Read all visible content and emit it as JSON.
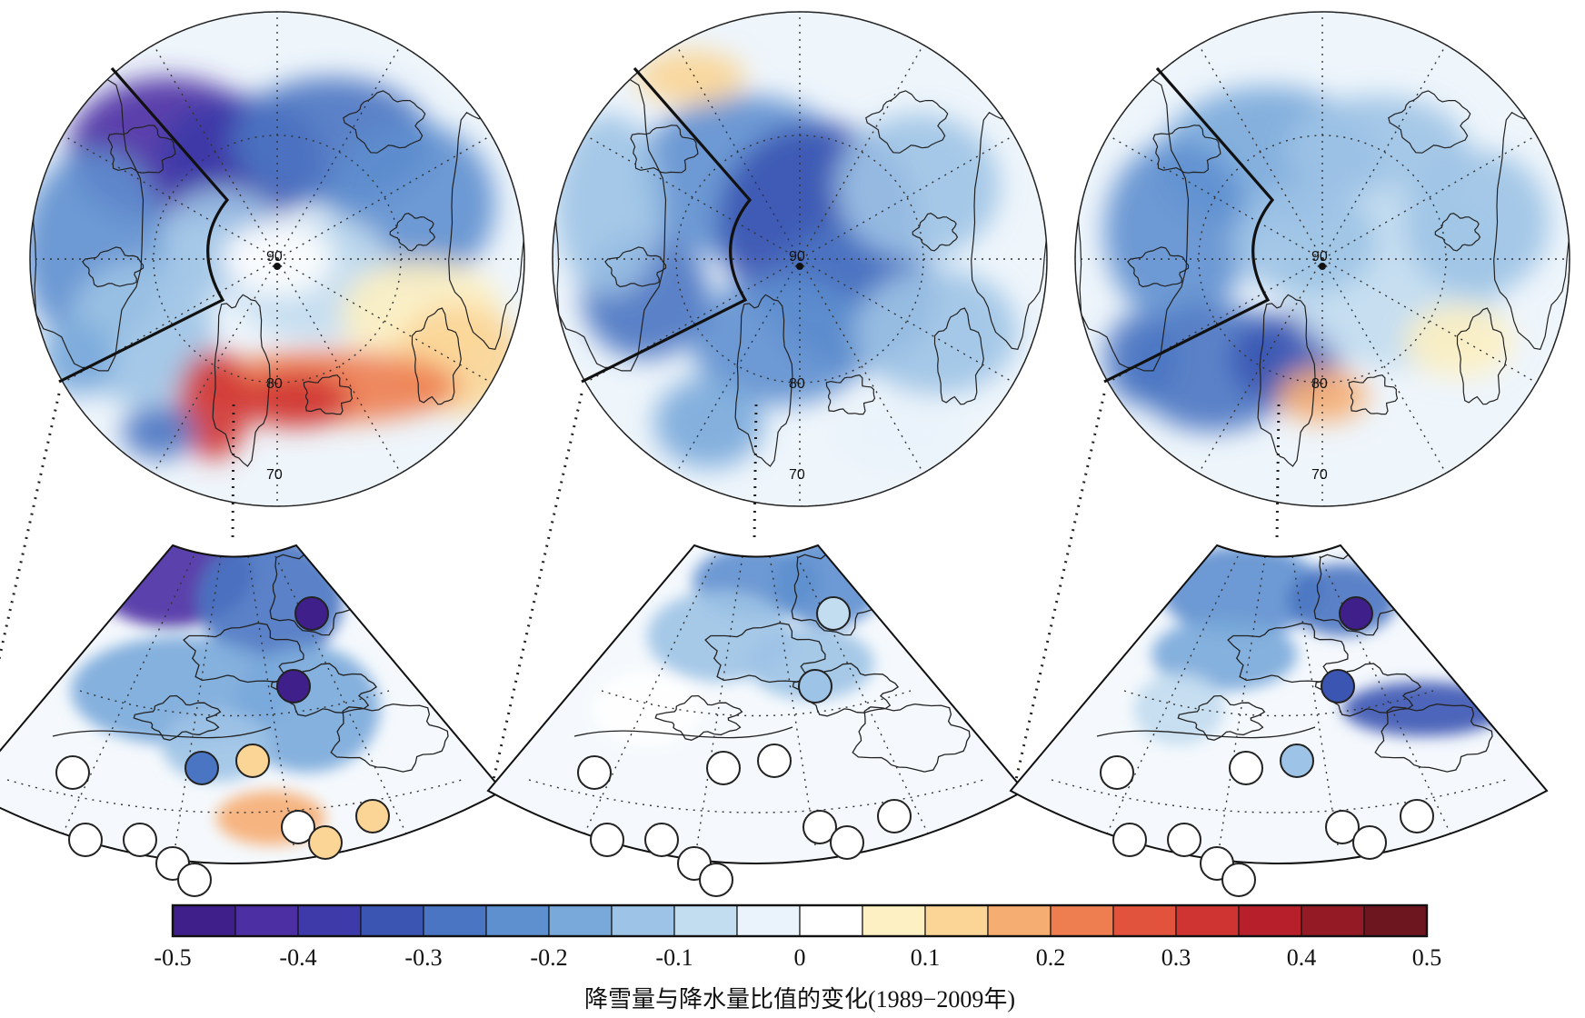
{
  "colorbar": {
    "title": "降雪量与降水量比值的变化(1989−2009年)",
    "ticks": [
      "-0.5",
      "-0.4",
      "-0.3",
      "-0.2",
      "-0.1",
      "0",
      "0.1",
      "0.2",
      "0.3",
      "0.4",
      "0.5"
    ],
    "min": -0.5,
    "max": 0.5,
    "colors": [
      "#3f1f8a",
      "#4b2fa3",
      "#3e3aa9",
      "#3a55b2",
      "#4a75c2",
      "#5e8fcf",
      "#79a8da",
      "#9dc3e6",
      "#c2dcf0",
      "#eaf3fb",
      "#ffffff",
      "#fdf0c2",
      "#fbd595",
      "#f6ad72",
      "#ee7d50",
      "#e2533d",
      "#d03432",
      "#b71f2b",
      "#941b25",
      "#6e1620"
    ]
  },
  "panels": [
    {
      "id": "left",
      "lat_labels": [
        "90",
        "80",
        "70"
      ],
      "stations": [
        {
          "value": -0.45
        },
        {
          "value": -0.45
        },
        {
          "value": -0.3
        },
        {
          "value": 0.1
        },
        {
          "value": 0.0
        },
        {
          "value": 0.0
        },
        {
          "value": 0.0
        },
        {
          "value": 0.0
        },
        {
          "value": 0.0
        },
        {
          "value": 0.0
        },
        {
          "value": 0.1
        },
        {
          "value": 0.1
        }
      ]
    },
    {
      "id": "middle",
      "lat_labels": [
        "90",
        "80",
        "70"
      ],
      "stations": [
        {
          "value": -0.1
        },
        {
          "value": -0.15
        },
        {
          "value": 0.0
        },
        {
          "value": 0.0
        },
        {
          "value": 0.0
        },
        {
          "value": 0.0
        },
        {
          "value": 0.0
        },
        {
          "value": 0.0
        },
        {
          "value": 0.0
        },
        {
          "value": 0.0
        },
        {
          "value": 0.0
        },
        {
          "value": 0.0
        }
      ]
    },
    {
      "id": "right",
      "lat_labels": [
        "90",
        "80",
        "70"
      ],
      "stations": [
        {
          "value": -0.45
        },
        {
          "value": -0.35
        },
        {
          "value": 0.0
        },
        {
          "value": -0.15
        },
        {
          "value": 0.0
        },
        {
          "value": 0.0
        },
        {
          "value": 0.0
        },
        {
          "value": 0.0
        },
        {
          "value": 0.0
        },
        {
          "value": 0.0
        },
        {
          "value": 0.0
        },
        {
          "value": 0.0
        }
      ]
    }
  ]
}
